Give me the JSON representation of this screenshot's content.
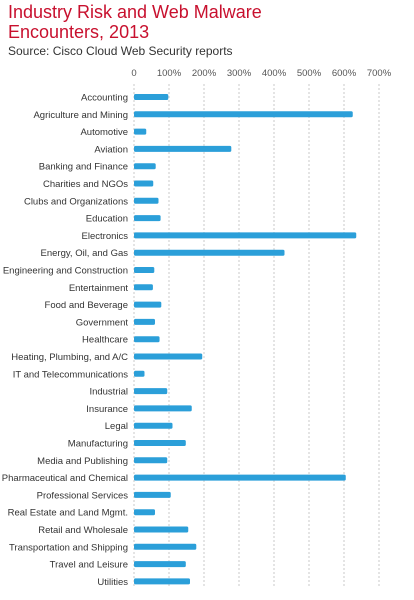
{
  "title_line1": "Industry Risk and Web Malware",
  "title_line2": "Encounters, 2013",
  "subtitle": "Source: Cisco Cloud Web Security reports",
  "bar_color": "#2b9fd9",
  "chart_data": {
    "type": "bar",
    "orientation": "horizontal",
    "title": "Industry Risk and Web Malware Encounters, 2013",
    "subtitle": "Source: Cisco Cloud Web Security reports",
    "xlim": [
      0,
      700
    ],
    "xticks": [
      "0",
      "100%",
      "200%",
      "300%",
      "400%",
      "500%",
      "600%",
      "700%"
    ],
    "xtick_values": [
      0,
      100,
      200,
      300,
      400,
      500,
      600,
      700
    ],
    "grid": "vertical-dashed",
    "categories": [
      "Accounting",
      "Agriculture and Mining",
      "Automotive",
      "Aviation",
      "Banking and Finance",
      "Charities and NGOs",
      "Clubs and Organizations",
      "Education",
      "Electronics",
      "Energy, Oil, and Gas",
      "Engineering and Construction",
      "Entertainment",
      "Food and Beverage",
      "Government",
      "Healthcare",
      "Heating, Plumbing, and A/C",
      "IT and Telecommunications",
      "Industrial",
      "Insurance",
      "Legal",
      "Manufacturing",
      "Media and Publishing",
      "Pharmaceutical and Chemical",
      "Professional Services",
      "Real Estate and Land Mgmt.",
      "Retail and Wholesale",
      "Transportation and Shipping",
      "Travel and Leisure",
      "Utilities"
    ],
    "values": [
      98,
      625,
      35,
      278,
      62,
      55,
      70,
      76,
      635,
      430,
      58,
      54,
      78,
      60,
      73,
      195,
      30,
      95,
      165,
      110,
      148,
      95,
      605,
      105,
      60,
      155,
      178,
      148,
      160
    ]
  }
}
